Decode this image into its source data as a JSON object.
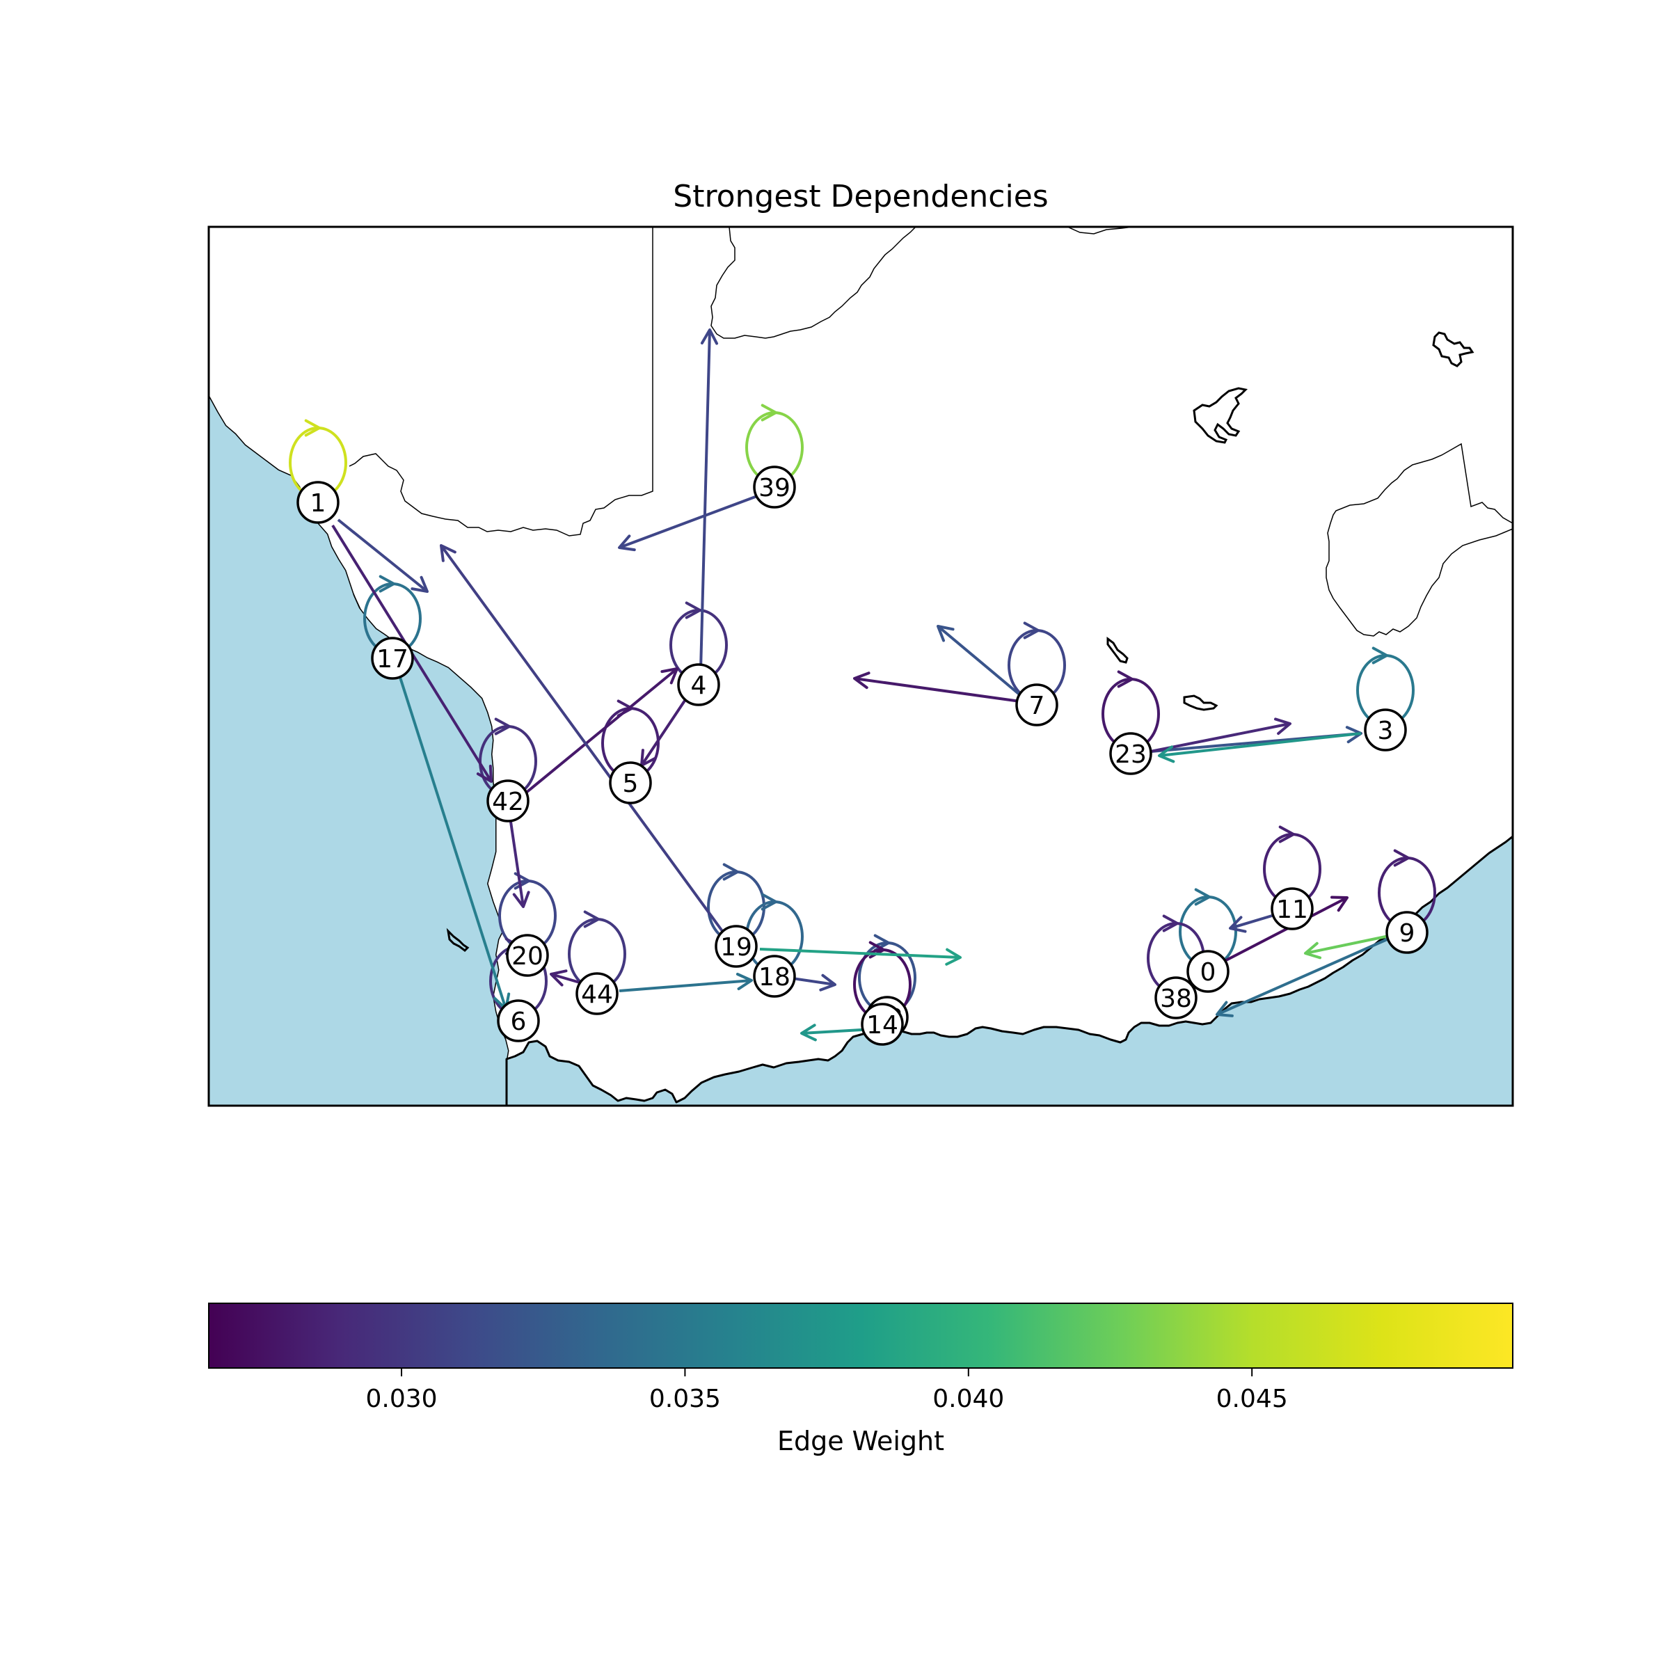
{
  "title": "Strongest Dependencies",
  "colorbar": {
    "label": "Edge Weight",
    "vmin": 0.0266,
    "vmax": 0.0496,
    "ticks": [
      0.03,
      0.035,
      0.04,
      0.045
    ],
    "tick_labels": [
      "0.030",
      "0.035",
      "0.040",
      "0.045"
    ],
    "colormap": "viridis"
  },
  "map": {
    "region": "Southern Africa (South Africa, Lesotho)",
    "ocean_color": "#add8e6",
    "land_color": "#ffffff",
    "coastline_color": "#000000"
  },
  "chart_data": {
    "type": "network",
    "title": "Strongest Dependencies",
    "colorbar_label": "Edge Weight",
    "nodes": [
      {
        "id": "1"
      },
      {
        "id": "17"
      },
      {
        "id": "39"
      },
      {
        "id": "4"
      },
      {
        "id": "5"
      },
      {
        "id": "42"
      },
      {
        "id": "7"
      },
      {
        "id": "23"
      },
      {
        "id": "3"
      },
      {
        "id": "20"
      },
      {
        "id": "6"
      },
      {
        "id": "44"
      },
      {
        "id": "19"
      },
      {
        "id": "18"
      },
      {
        "id": "13"
      },
      {
        "id": "14"
      },
      {
        "id": "11"
      },
      {
        "id": "9"
      },
      {
        "id": "0"
      },
      {
        "id": "38"
      }
    ],
    "self_loops": [
      {
        "node": "1",
        "weight": 0.0465
      },
      {
        "node": "17",
        "weight": 0.0345
      },
      {
        "node": "39",
        "weight": 0.0435
      },
      {
        "node": "4",
        "weight": 0.0295
      },
      {
        "node": "5",
        "weight": 0.0285
      },
      {
        "node": "42",
        "weight": 0.0295
      },
      {
        "node": "7",
        "weight": 0.031
      },
      {
        "node": "23",
        "weight": 0.028
      },
      {
        "node": "3",
        "weight": 0.035
      },
      {
        "node": "20",
        "weight": 0.031
      },
      {
        "node": "6",
        "weight": 0.0295
      },
      {
        "node": "44",
        "weight": 0.03
      },
      {
        "node": "19",
        "weight": 0.032
      },
      {
        "node": "18",
        "weight": 0.0335
      },
      {
        "node": "13",
        "weight": 0.032
      },
      {
        "node": "14",
        "weight": 0.0275
      },
      {
        "node": "11",
        "weight": 0.0285
      },
      {
        "node": "9",
        "weight": 0.0285
      },
      {
        "node": "0",
        "weight": 0.0345
      },
      {
        "node": "38",
        "weight": 0.029
      }
    ],
    "edges": [
      {
        "from": "1",
        "to": "42",
        "weight": 0.0285
      },
      {
        "from": "1",
        "weight": 0.031
      },
      {
        "from": "17",
        "to": "6",
        "weight": 0.0355
      },
      {
        "from": "39",
        "to": "42",
        "weight": 0.028
      },
      {
        "from": "39",
        "weight": 0.031
      },
      {
        "from": "4",
        "weight": 0.031
      },
      {
        "from": "4",
        "to": "5",
        "weight": 0.0285
      },
      {
        "from": "19",
        "weight": 0.0305
      },
      {
        "from": "42",
        "to": "20",
        "weight": 0.029
      },
      {
        "from": "44",
        "to": "18",
        "weight": 0.0345
      },
      {
        "from": "44",
        "weight": 0.0285
      },
      {
        "from": "18",
        "weight": 0.031
      },
      {
        "from": "19",
        "weight": 0.0385
      },
      {
        "from": "14",
        "weight": 0.0375
      },
      {
        "from": "7",
        "weight": 0.028
      },
      {
        "from": "7",
        "weight": 0.032
      },
      {
        "from": "23",
        "to": "3",
        "weight": 0.032
      },
      {
        "from": "23",
        "weight": 0.029
      },
      {
        "from": "3",
        "to": "23",
        "weight": 0.0375
      },
      {
        "from": "0",
        "weight": 0.0275
      },
      {
        "from": "11",
        "to": "0",
        "weight": 0.031
      },
      {
        "from": "9",
        "weight": 0.0425
      },
      {
        "from": "9",
        "to": "38",
        "weight": 0.034
      }
    ]
  }
}
